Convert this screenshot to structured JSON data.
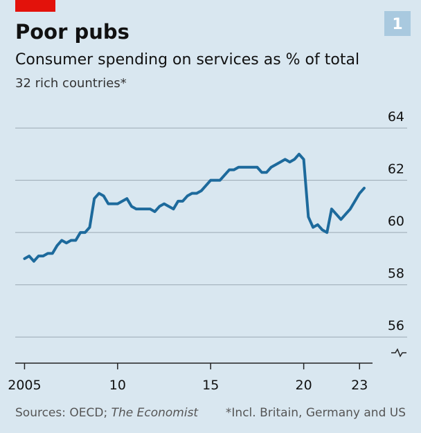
{
  "chart_data": {
    "type": "line",
    "title": "Poor pubs",
    "subtitle": "Consumer spending on services as % of total",
    "note_top": "32 rich countries*",
    "badge": "1",
    "source": "Sources: OECD;",
    "source_italic": "The Economist",
    "footnote": "*Incl. Britain, Germany and US",
    "x": [
      2005,
      2005.25,
      2005.5,
      2005.75,
      2006,
      2006.25,
      2006.5,
      2006.75,
      2007,
      2007.25,
      2007.5,
      2007.75,
      2008,
      2008.25,
      2008.5,
      2008.75,
      2009,
      2009.25,
      2009.5,
      2009.75,
      2010,
      2010.25,
      2010.5,
      2010.75,
      2011,
      2011.25,
      2011.5,
      2011.75,
      2012,
      2012.25,
      2012.5,
      2012.75,
      2013,
      2013.25,
      2013.5,
      2013.75,
      2014,
      2014.25,
      2014.5,
      2014.75,
      2015,
      2015.25,
      2015.5,
      2015.75,
      2016,
      2016.25,
      2016.5,
      2016.75,
      2017,
      2017.25,
      2017.5,
      2017.75,
      2018,
      2018.25,
      2018.5,
      2018.75,
      2019,
      2019.25,
      2019.5,
      2019.75,
      2020,
      2020.25,
      2020.5,
      2020.75,
      2021,
      2021.25,
      2021.5,
      2021.75,
      2022,
      2022.25,
      2022.5,
      2022.75,
      2023,
      2023.25
    ],
    "series": [
      {
        "color": "#1d6a9c",
        "values": [
          59.0,
          59.1,
          58.9,
          59.1,
          59.1,
          59.2,
          59.2,
          59.5,
          59.7,
          59.6,
          59.7,
          59.7,
          60.0,
          60.0,
          60.2,
          61.3,
          61.5,
          61.4,
          61.1,
          61.1,
          61.1,
          61.2,
          61.3,
          61.0,
          60.9,
          60.9,
          60.9,
          60.9,
          60.8,
          61.0,
          61.1,
          61.0,
          60.9,
          61.2,
          61.2,
          61.4,
          61.5,
          61.5,
          61.6,
          61.8,
          62.0,
          62.0,
          62.0,
          62.2,
          62.4,
          62.4,
          62.5,
          62.5,
          62.5,
          62.5,
          62.5,
          62.3,
          62.3,
          62.5,
          62.6,
          62.7,
          62.8,
          62.7,
          62.8,
          63.0,
          62.8,
          60.6,
          60.2,
          60.3,
          60.1,
          60.0,
          60.9,
          60.7,
          60.5,
          60.7,
          60.9,
          61.2,
          61.5,
          61.7
        ]
      }
    ],
    "xlim": [
      2004.5,
      2023.4
    ],
    "xticks": [
      2005,
      {
        "value": 2010,
        "label": "10"
      },
      {
        "value": 2015,
        "label": "15"
      },
      {
        "value": 2020,
        "label": "20"
      },
      {
        "value": 2023,
        "label": "23"
      }
    ],
    "ylim": [
      55,
      64.4
    ],
    "yticks": [
      56,
      58,
      60,
      62,
      64
    ],
    "grid": true
  }
}
